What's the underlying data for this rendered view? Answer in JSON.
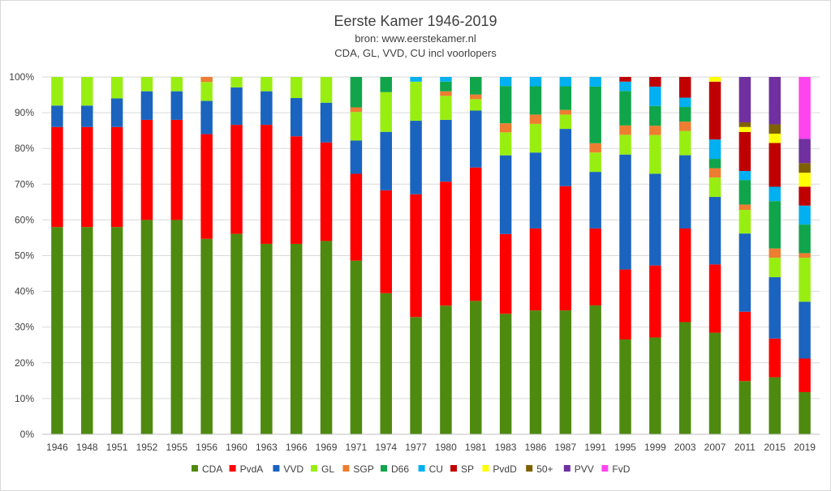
{
  "chart_data": {
    "type": "bar",
    "stacked": true,
    "normalized": true,
    "title": "Eerste Kamer 1946-2019",
    "subtitle_lines": [
      "bron: www.eerstekamer.nl",
      "CDA, GL, VVD, CU incl voorlopers"
    ],
    "xlabel": "",
    "ylabel": "",
    "ylim": [
      0,
      100
    ],
    "y_ticks": [
      "0%",
      "10%",
      "20%",
      "30%",
      "40%",
      "50%",
      "60%",
      "70%",
      "80%",
      "90%",
      "100%"
    ],
    "grid": "horizontal",
    "legend_position": "bottom",
    "categories": [
      "1946",
      "1948",
      "1951",
      "1952",
      "1955",
      "1956",
      "1960",
      "1963",
      "1966",
      "1969",
      "1971",
      "1974",
      "1977",
      "1980",
      "1981",
      "1983",
      "1986",
      "1987",
      "1991",
      "1995",
      "1999",
      "2003",
      "2007",
      "2011",
      "2015",
      "2019"
    ],
    "series": [
      {
        "name": "CDA",
        "color": "#4e8a0f",
        "values": [
          58,
          58,
          58,
          60,
          60,
          54.7,
          56.1,
          53.3,
          53.3,
          54.1,
          48.6,
          39.1,
          32.4,
          36,
          37.3,
          34.6,
          34.6,
          34.6,
          36,
          26.4,
          27,
          31.4,
          28.3,
          14.9,
          15.9,
          11.8
        ]
      },
      {
        "name": "PvdA",
        "color": "#ff0000",
        "values": [
          28,
          28,
          28,
          28,
          28,
          29.3,
          30.5,
          33.3,
          30.1,
          27.6,
          24.3,
          28.5,
          33.9,
          34.7,
          37.3,
          22.9,
          22.9,
          34.7,
          21.5,
          19.5,
          20.1,
          26.2,
          19,
          19.4,
          10.8,
          9.4
        ]
      },
      {
        "name": "VVD",
        "color": "#1a64c0",
        "values": [
          6,
          6,
          8,
          8,
          8,
          9.3,
          10.5,
          9.4,
          10.7,
          11.1,
          9.3,
          16.2,
          20.3,
          17.3,
          15.9,
          22.6,
          21.2,
          16,
          15.8,
          32,
          25.6,
          20.5,
          18.8,
          21.9,
          17.1,
          15.9
        ]
      },
      {
        "name": "GL",
        "color": "#99ee11",
        "values": [
          8,
          8,
          6,
          4,
          4,
          5.3,
          2.9,
          4,
          5.9,
          7.2,
          8,
          11,
          10.8,
          6.7,
          3.2,
          6.6,
          8,
          4,
          5.4,
          5.5,
          10.8,
          6.8,
          5.4,
          6.6,
          5.4,
          12.3
        ]
      },
      {
        "name": "SGP",
        "color": "#ed7d31",
        "values": [
          0,
          0,
          0,
          0,
          0,
          1.4,
          0,
          0,
          0,
          0,
          1.3,
          0,
          0,
          1.3,
          1.3,
          2.6,
          2.6,
          1.3,
          2.6,
          2.6,
          2.6,
          2.6,
          2.6,
          1.5,
          2.6,
          1.3
        ]
      },
      {
        "name": "D66",
        "color": "#10a54a",
        "values": [
          0,
          0,
          0,
          0,
          0,
          0,
          0,
          0,
          0,
          0,
          8.5,
          4.2,
          0,
          2.7,
          4.9,
          10.7,
          7.9,
          6.6,
          15.8,
          9.6,
          5.5,
          4.1,
          2.6,
          6.8,
          13.2,
          8
        ]
      },
      {
        "name": "CU",
        "color": "#00b0f0",
        "values": [
          0,
          0,
          0,
          0,
          0,
          0,
          0,
          0,
          0,
          0,
          0,
          0,
          1.3,
          1.3,
          0,
          2.6,
          2.6,
          2.6,
          2.7,
          2.6,
          5.4,
          2.6,
          5.4,
          2.6,
          4,
          5.3
        ]
      },
      {
        "name": "SP",
        "color": "#c00000",
        "values": [
          0,
          0,
          0,
          0,
          0,
          0,
          0,
          0,
          0,
          0,
          0,
          0,
          0,
          0,
          0,
          0,
          0,
          0,
          0,
          1.3,
          2.7,
          5.8,
          16.1,
          10.9,
          12.2,
          5.3
        ]
      },
      {
        "name": "PvdD",
        "color": "#ffff00",
        "values": [
          0,
          0,
          0,
          0,
          0,
          0,
          0,
          0,
          0,
          0,
          0,
          0,
          0,
          0,
          0,
          0,
          0,
          0,
          0,
          0,
          0,
          0,
          1.3,
          1.4,
          2.6,
          3.9
        ]
      },
      {
        "name": "50+",
        "color": "#7f6000",
        "values": [
          0,
          0,
          0,
          0,
          0,
          0,
          0,
          0,
          0,
          0,
          0,
          0,
          0,
          0,
          0,
          0,
          0,
          0,
          0,
          0,
          0,
          0,
          0,
          1.3,
          2.6,
          2.7
        ]
      },
      {
        "name": "PVV",
        "color": "#7030a0",
        "values": [
          0,
          0,
          0,
          0,
          0,
          0,
          0,
          0,
          0,
          0,
          0,
          0,
          0,
          0,
          0,
          0,
          0,
          0,
          0,
          0,
          0,
          0,
          0,
          12.7,
          13.2,
          6.8
        ]
      },
      {
        "name": "FvD",
        "color": "#ff44ee",
        "values": [
          0,
          0,
          0,
          0,
          0,
          0,
          0,
          0,
          0,
          0,
          0,
          0,
          0,
          0,
          0,
          0,
          0,
          0,
          0,
          0,
          0,
          0,
          0,
          0,
          0,
          17.3
        ]
      }
    ]
  }
}
